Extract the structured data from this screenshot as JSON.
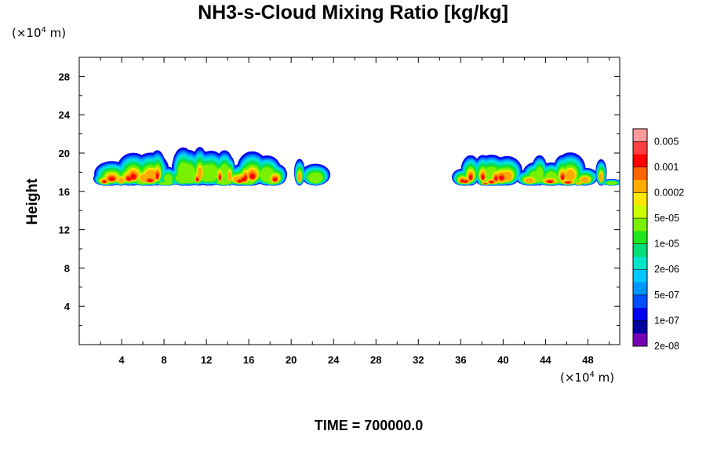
{
  "chart_data": {
    "type": "heatmap",
    "title": "NH3-s-Cloud Mixing Ratio [kg/kg]",
    "ylabel": "Height",
    "xlabel": "",
    "x_unit_prefix": "(×10",
    "unit_exponent": "4",
    "unit_suffix": " m)",
    "xlim": [
      0,
      51
    ],
    "ylim": [
      0,
      30
    ],
    "x_ticks": [
      4,
      8,
      12,
      16,
      20,
      24,
      28,
      32,
      36,
      40,
      44,
      48
    ],
    "y_ticks": [
      4,
      8,
      12,
      16,
      20,
      24,
      28
    ],
    "colorbar": {
      "labels": [
        "0.005",
        "0.001",
        "0.0002",
        "5e-05",
        "1e-05",
        "2e-06",
        "5e-07",
        "1e-07",
        "2e-08"
      ],
      "colors": [
        "#ff9a9a",
        "#ff4040",
        "#ff0000",
        "#ff6400",
        "#ffaa00",
        "#ffe600",
        "#ccff00",
        "#78f000",
        "#1ee61e",
        "#00dc78",
        "#00e6c8",
        "#00c8ff",
        "#0096ff",
        "#0050ff",
        "#0000f0",
        "#0000a0",
        "#7800b4"
      ]
    },
    "cloud_bands": [
      {
        "x_range": [
          0,
          23.3
        ],
        "height_range": [
          16.6,
          20.8
        ],
        "max_mixing_ratio": "0.001"
      },
      {
        "x_range": [
          35.1,
          51
        ],
        "height_range": [
          16.6,
          20.1
        ],
        "max_mixing_ratio": "0.001"
      }
    ],
    "grid": false
  },
  "time_label": "TIME = 700000.0"
}
